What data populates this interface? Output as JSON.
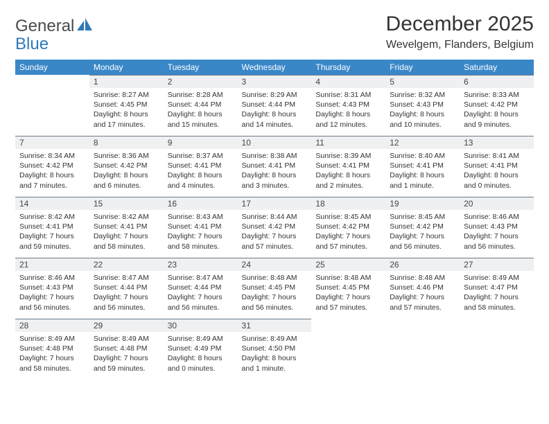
{
  "brand": {
    "part1": "General",
    "part2": "Blue"
  },
  "title": "December 2025",
  "location": "Wevelgem, Flanders, Belgium",
  "colors": {
    "header_bg": "#3a87c8",
    "header_text": "#ffffff",
    "daynum_bg": "#eef0f2",
    "daynum_border": "#6b7a8a",
    "brand_blue": "#2f79b9",
    "text": "#333333",
    "page_bg": "#ffffff"
  },
  "weekdays": [
    "Sunday",
    "Monday",
    "Tuesday",
    "Wednesday",
    "Thursday",
    "Friday",
    "Saturday"
  ],
  "weeks": [
    [
      null,
      {
        "n": "1",
        "sr": "Sunrise: 8:27 AM",
        "ss": "Sunset: 4:45 PM",
        "dl": "Daylight: 8 hours and 17 minutes."
      },
      {
        "n": "2",
        "sr": "Sunrise: 8:28 AM",
        "ss": "Sunset: 4:44 PM",
        "dl": "Daylight: 8 hours and 15 minutes."
      },
      {
        "n": "3",
        "sr": "Sunrise: 8:29 AM",
        "ss": "Sunset: 4:44 PM",
        "dl": "Daylight: 8 hours and 14 minutes."
      },
      {
        "n": "4",
        "sr": "Sunrise: 8:31 AM",
        "ss": "Sunset: 4:43 PM",
        "dl": "Daylight: 8 hours and 12 minutes."
      },
      {
        "n": "5",
        "sr": "Sunrise: 8:32 AM",
        "ss": "Sunset: 4:43 PM",
        "dl": "Daylight: 8 hours and 10 minutes."
      },
      {
        "n": "6",
        "sr": "Sunrise: 8:33 AM",
        "ss": "Sunset: 4:42 PM",
        "dl": "Daylight: 8 hours and 9 minutes."
      }
    ],
    [
      {
        "n": "7",
        "sr": "Sunrise: 8:34 AM",
        "ss": "Sunset: 4:42 PM",
        "dl": "Daylight: 8 hours and 7 minutes."
      },
      {
        "n": "8",
        "sr": "Sunrise: 8:36 AM",
        "ss": "Sunset: 4:42 PM",
        "dl": "Daylight: 8 hours and 6 minutes."
      },
      {
        "n": "9",
        "sr": "Sunrise: 8:37 AM",
        "ss": "Sunset: 4:41 PM",
        "dl": "Daylight: 8 hours and 4 minutes."
      },
      {
        "n": "10",
        "sr": "Sunrise: 8:38 AM",
        "ss": "Sunset: 4:41 PM",
        "dl": "Daylight: 8 hours and 3 minutes."
      },
      {
        "n": "11",
        "sr": "Sunrise: 8:39 AM",
        "ss": "Sunset: 4:41 PM",
        "dl": "Daylight: 8 hours and 2 minutes."
      },
      {
        "n": "12",
        "sr": "Sunrise: 8:40 AM",
        "ss": "Sunset: 4:41 PM",
        "dl": "Daylight: 8 hours and 1 minute."
      },
      {
        "n": "13",
        "sr": "Sunrise: 8:41 AM",
        "ss": "Sunset: 4:41 PM",
        "dl": "Daylight: 8 hours and 0 minutes."
      }
    ],
    [
      {
        "n": "14",
        "sr": "Sunrise: 8:42 AM",
        "ss": "Sunset: 4:41 PM",
        "dl": "Daylight: 7 hours and 59 minutes."
      },
      {
        "n": "15",
        "sr": "Sunrise: 8:42 AM",
        "ss": "Sunset: 4:41 PM",
        "dl": "Daylight: 7 hours and 58 minutes."
      },
      {
        "n": "16",
        "sr": "Sunrise: 8:43 AM",
        "ss": "Sunset: 4:41 PM",
        "dl": "Daylight: 7 hours and 58 minutes."
      },
      {
        "n": "17",
        "sr": "Sunrise: 8:44 AM",
        "ss": "Sunset: 4:42 PM",
        "dl": "Daylight: 7 hours and 57 minutes."
      },
      {
        "n": "18",
        "sr": "Sunrise: 8:45 AM",
        "ss": "Sunset: 4:42 PM",
        "dl": "Daylight: 7 hours and 57 minutes."
      },
      {
        "n": "19",
        "sr": "Sunrise: 8:45 AM",
        "ss": "Sunset: 4:42 PM",
        "dl": "Daylight: 7 hours and 56 minutes."
      },
      {
        "n": "20",
        "sr": "Sunrise: 8:46 AM",
        "ss": "Sunset: 4:43 PM",
        "dl": "Daylight: 7 hours and 56 minutes."
      }
    ],
    [
      {
        "n": "21",
        "sr": "Sunrise: 8:46 AM",
        "ss": "Sunset: 4:43 PM",
        "dl": "Daylight: 7 hours and 56 minutes."
      },
      {
        "n": "22",
        "sr": "Sunrise: 8:47 AM",
        "ss": "Sunset: 4:44 PM",
        "dl": "Daylight: 7 hours and 56 minutes."
      },
      {
        "n": "23",
        "sr": "Sunrise: 8:47 AM",
        "ss": "Sunset: 4:44 PM",
        "dl": "Daylight: 7 hours and 56 minutes."
      },
      {
        "n": "24",
        "sr": "Sunrise: 8:48 AM",
        "ss": "Sunset: 4:45 PM",
        "dl": "Daylight: 7 hours and 56 minutes."
      },
      {
        "n": "25",
        "sr": "Sunrise: 8:48 AM",
        "ss": "Sunset: 4:45 PM",
        "dl": "Daylight: 7 hours and 57 minutes."
      },
      {
        "n": "26",
        "sr": "Sunrise: 8:48 AM",
        "ss": "Sunset: 4:46 PM",
        "dl": "Daylight: 7 hours and 57 minutes."
      },
      {
        "n": "27",
        "sr": "Sunrise: 8:49 AM",
        "ss": "Sunset: 4:47 PM",
        "dl": "Daylight: 7 hours and 58 minutes."
      }
    ],
    [
      {
        "n": "28",
        "sr": "Sunrise: 8:49 AM",
        "ss": "Sunset: 4:48 PM",
        "dl": "Daylight: 7 hours and 58 minutes."
      },
      {
        "n": "29",
        "sr": "Sunrise: 8:49 AM",
        "ss": "Sunset: 4:48 PM",
        "dl": "Daylight: 7 hours and 59 minutes."
      },
      {
        "n": "30",
        "sr": "Sunrise: 8:49 AM",
        "ss": "Sunset: 4:49 PM",
        "dl": "Daylight: 8 hours and 0 minutes."
      },
      {
        "n": "31",
        "sr": "Sunrise: 8:49 AM",
        "ss": "Sunset: 4:50 PM",
        "dl": "Daylight: 8 hours and 1 minute."
      },
      null,
      null,
      null
    ]
  ]
}
